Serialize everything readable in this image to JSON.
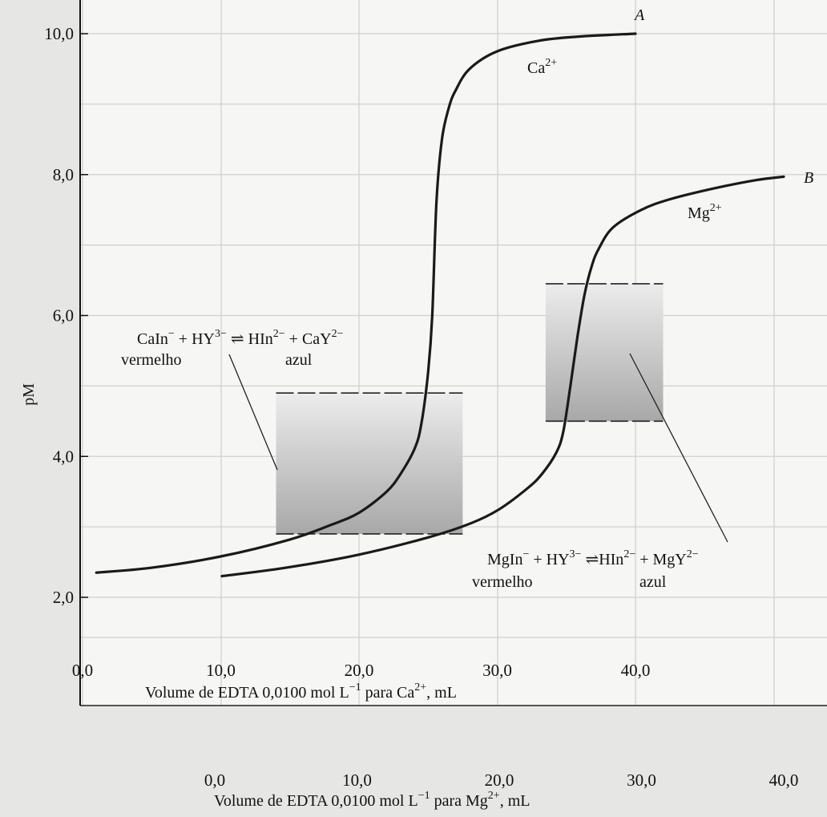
{
  "chart_data": {
    "type": "line",
    "title": "",
    "ylabel": "pM",
    "ylim": [
      1.5,
      10.0
    ],
    "yticks": [
      "2,0",
      "4,0",
      "6,0",
      "8,0",
      "10,0"
    ],
    "grid": true,
    "x_axes": [
      {
        "name": "ca-axis",
        "label": {
          "main": "Volume de EDTA 0,0100 mol L",
          "exp": "−1",
          "mid": " para Ca",
          "ion": "2+",
          "tail": ", mL"
        },
        "ticks": [
          "0,0",
          "10,0",
          "20,0",
          "30,0",
          "40,0"
        ],
        "xlim": [
          0,
          55
        ]
      },
      {
        "name": "mg-axis",
        "label": {
          "main": "Volume de EDTA 0,0100 mol L",
          "exp": "−1",
          "mid": " para Mg",
          "ion": "2+",
          "tail": ", mL"
        },
        "ticks": [
          "0,0",
          "10,0",
          "20,0",
          "30,0",
          "40,0"
        ],
        "xlim": [
          -10,
          45
        ]
      }
    ],
    "series": [
      {
        "label": "A",
        "ion": "Ca",
        "charge": "2+",
        "x_axis": "ca-axis",
        "x": [
          1,
          5,
          10,
          15,
          18,
          20,
          22,
          23,
          24,
          24.5,
          25,
          25.3,
          25.6,
          26,
          26.5,
          27,
          28,
          30,
          33,
          36,
          40
        ],
        "y": [
          2.35,
          2.42,
          2.58,
          2.82,
          3.03,
          3.2,
          3.5,
          3.75,
          4.1,
          4.45,
          5.2,
          6.0,
          7.6,
          8.5,
          8.95,
          9.2,
          9.5,
          9.75,
          9.9,
          9.96,
          10.0
        ]
      },
      {
        "label": "B",
        "ion": "Mg",
        "charge": "2+",
        "x_axis": "mg-axis",
        "x": [
          0.5,
          5,
          10,
          15,
          18,
          20,
          22,
          23,
          24,
          24.5,
          25,
          25.5,
          26,
          26.5,
          27,
          28,
          30,
          32,
          35,
          38,
          40
        ],
        "y": [
          2.3,
          2.42,
          2.6,
          2.85,
          3.05,
          3.25,
          3.55,
          3.75,
          4.05,
          4.35,
          5.0,
          5.7,
          6.3,
          6.7,
          6.95,
          7.25,
          7.5,
          7.65,
          7.8,
          7.92,
          7.97
        ]
      }
    ],
    "indicator_ranges": [
      {
        "name": "ca-indicator-range",
        "x_axis": "ca-axis",
        "x": [
          14,
          27.5
        ],
        "y": [
          2.9,
          4.9
        ]
      },
      {
        "name": "mg-indicator-range",
        "x_axis": "ca-axis",
        "x": [
          33.5,
          42
        ],
        "y": [
          4.5,
          6.45
        ]
      }
    ],
    "annotations": [
      {
        "name": "ca-reaction",
        "left": {
          "text": "CaIn",
          "charge": "−"
        },
        "reagent": {
          "text": "HY",
          "charge": "3−"
        },
        "arrow": "⇌",
        "product1": {
          "text": "HIn",
          "charge": "2−"
        },
        "product2": {
          "text": "CaY",
          "charge": "2−"
        },
        "left_color": "vermelho",
        "right_color": "azul"
      },
      {
        "name": "mg-reaction",
        "left": {
          "text": "MgIn",
          "charge": "−"
        },
        "reagent": {
          "text": "HY",
          "charge": "3−"
        },
        "arrow": "⇌",
        "product1": {
          "text": "HIn",
          "charge": "2−"
        },
        "product2": {
          "text": "MgY",
          "charge": "2−"
        },
        "left_color": "vermelho",
        "right_color": "azul"
      }
    ]
  }
}
